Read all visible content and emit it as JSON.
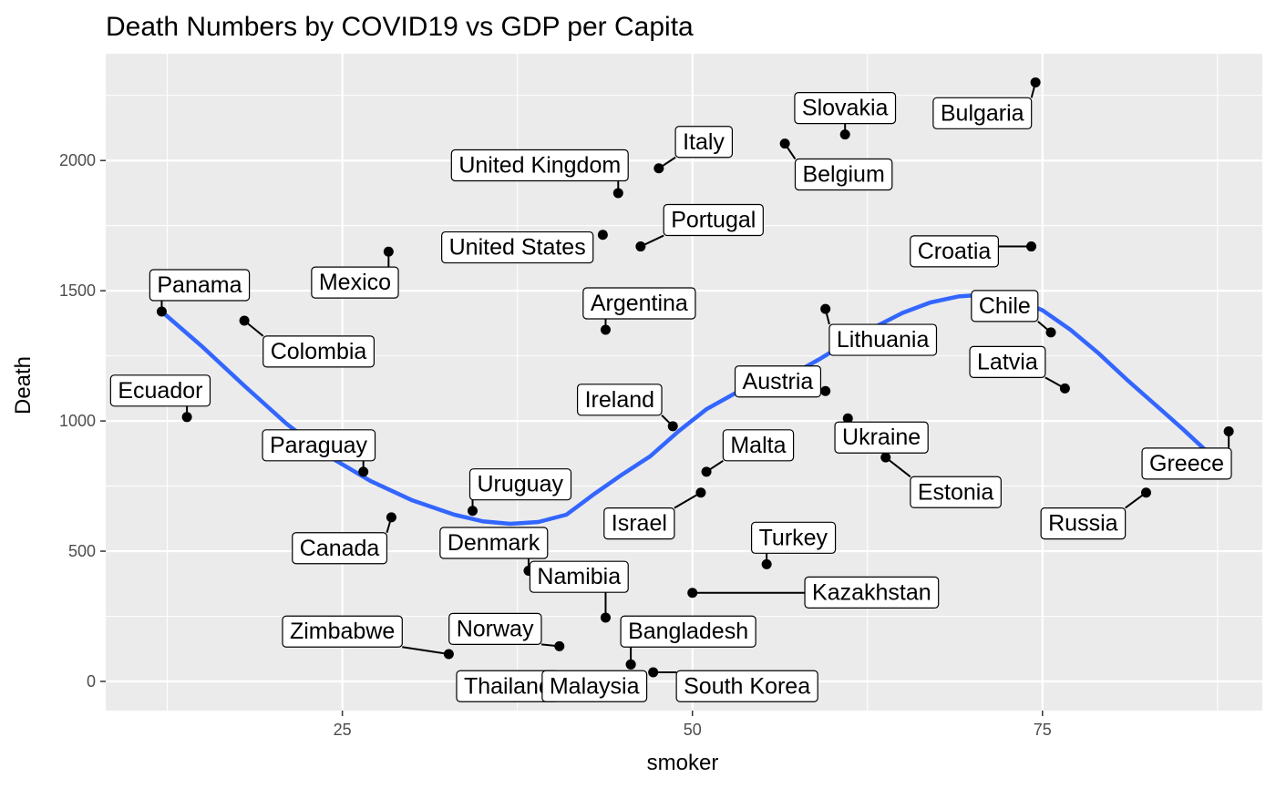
{
  "chart_data": {
    "type": "scatter",
    "title": "Death Numbers by COVID19 vs GDP per Capita",
    "xlabel": "smoker",
    "ylabel": "Death",
    "xlim": [
      8.1,
      90.7
    ],
    "ylim": [
      -112,
      2410
    ],
    "x_ticks": [
      25,
      50,
      75
    ],
    "x_tick_labels": [
      "25",
      "50",
      "75"
    ],
    "y_ticks": [
      0,
      500,
      1000,
      1500,
      2000
    ],
    "y_tick_labels": [
      "0",
      "500",
      "1000",
      "1500",
      "2000"
    ],
    "grid": true,
    "panel_background": "#ebebeb",
    "point_color": "#000000",
    "smooth_color": "#3366ff",
    "points": [
      {
        "label": "Panama",
        "x": 12.1,
        "y": 1420,
        "lx": 14.8,
        "ly": 1525
      },
      {
        "label": "Ecuador",
        "x": 13.9,
        "y": 1015,
        "lx": 12.0,
        "ly": 1120
      },
      {
        "label": "Colombia",
        "x": 18.0,
        "y": 1385,
        "lx": 23.3,
        "ly": 1270
      },
      {
        "label": "Mexico",
        "x": 28.3,
        "y": 1650,
        "lx": 25.9,
        "ly": 1535
      },
      {
        "label": "Paraguay",
        "x": 26.5,
        "y": 805,
        "lx": 23.3,
        "ly": 910
      },
      {
        "label": "Canada",
        "x": 28.5,
        "y": 630,
        "lx": 24.8,
        "ly": 515
      },
      {
        "label": "Uruguay",
        "x": 34.3,
        "y": 655,
        "lx": 37.7,
        "ly": 760
      },
      {
        "label": "Denmark",
        "x": 38.3,
        "y": 425,
        "lx": 35.8,
        "ly": 535
      },
      {
        "label": "Zimbabwe",
        "x": 32.6,
        "y": 105,
        "lx": 25.0,
        "ly": 195
      },
      {
        "label": "Norway",
        "x": 40.5,
        "y": 135,
        "lx": 35.9,
        "ly": 205
      },
      {
        "label": "Thailand",
        "x": 40.0,
        "y": -15,
        "lx": 36.8,
        "ly": -15
      },
      {
        "label": "Namibia",
        "x": 43.8,
        "y": 245,
        "lx": 41.9,
        "ly": 405
      },
      {
        "label": "Malaysia",
        "x": 45.6,
        "y": 65,
        "lx": 43.0,
        "ly": -15
      },
      {
        "label": "Bangladesh",
        "x": 45.6,
        "y": 65,
        "lx": 49.7,
        "ly": 195
      },
      {
        "label": "South Korea",
        "x": 47.2,
        "y": 35,
        "lx": 53.9,
        "ly": -15
      },
      {
        "label": "Kazakhstan",
        "x": 50.0,
        "y": 340,
        "lx": 62.8,
        "ly": 345
      },
      {
        "label": "Turkey",
        "x": 55.3,
        "y": 450,
        "lx": 57.2,
        "ly": 555
      },
      {
        "label": "Israel",
        "x": 50.6,
        "y": 725,
        "lx": 46.2,
        "ly": 610
      },
      {
        "label": "Malta",
        "x": 51.0,
        "y": 805,
        "lx": 54.7,
        "ly": 910
      },
      {
        "label": "Ireland",
        "x": 48.6,
        "y": 980,
        "lx": 44.8,
        "ly": 1085
      },
      {
        "label": "Argentina",
        "x": 43.8,
        "y": 1350,
        "lx": 46.2,
        "ly": 1455
      },
      {
        "label": "United States",
        "x": 43.6,
        "y": 1715,
        "lx": 37.5,
        "ly": 1670
      },
      {
        "label": "Portugal",
        "x": 46.3,
        "y": 1670,
        "lx": 51.5,
        "ly": 1775
      },
      {
        "label": "United Kingdom",
        "x": 44.7,
        "y": 1875,
        "lx": 39.1,
        "ly": 1985
      },
      {
        "label": "Italy",
        "x": 47.6,
        "y": 1970,
        "lx": 50.8,
        "ly": 2075
      },
      {
        "label": "Belgium",
        "x": 56.6,
        "y": 2065,
        "lx": 60.8,
        "ly": 1950
      },
      {
        "label": "Slovakia",
        "x": 60.9,
        "y": 2100,
        "lx": 60.9,
        "ly": 2205
      },
      {
        "label": "Bulgaria",
        "x": 74.5,
        "y": 2300,
        "lx": 70.7,
        "ly": 2185
      },
      {
        "label": "Croatia",
        "x": 74.2,
        "y": 1670,
        "lx": 68.7,
        "ly": 1655
      },
      {
        "label": "Lithuania",
        "x": 59.5,
        "y": 1430,
        "lx": 63.6,
        "ly": 1315
      },
      {
        "label": "Austria",
        "x": 59.5,
        "y": 1115,
        "lx": 56.1,
        "ly": 1155
      },
      {
        "label": "Ukraine",
        "x": 61.1,
        "y": 1010,
        "lx": 63.5,
        "ly": 940
      },
      {
        "label": "Estonia",
        "x": 63.8,
        "y": 860,
        "lx": 68.8,
        "ly": 730
      },
      {
        "label": "Chile",
        "x": 75.6,
        "y": 1340,
        "lx": 72.3,
        "ly": 1445
      },
      {
        "label": "Latvia",
        "x": 76.6,
        "y": 1125,
        "lx": 72.5,
        "ly": 1230
      },
      {
        "label": "Greece",
        "x": 88.3,
        "y": 960,
        "lx": 85.3,
        "ly": 840
      },
      {
        "label": "Russia",
        "x": 82.4,
        "y": 725,
        "lx": 77.9,
        "ly": 610
      }
    ],
    "smooth": {
      "x": [
        12.1,
        15,
        18,
        21,
        24,
        27,
        30,
        33,
        35,
        37,
        39,
        41,
        43,
        45,
        47,
        49,
        51,
        53,
        55,
        57,
        59,
        61,
        63,
        65,
        67,
        69,
        71,
        73,
        75,
        77,
        79,
        81,
        83,
        85,
        87,
        88.3
      ],
      "y": [
        1420,
        1285,
        1135,
        990,
        865,
        770,
        695,
        640,
        615,
        605,
        612,
        640,
        720,
        795,
        865,
        960,
        1045,
        1105,
        1145,
        1175,
        1235,
        1300,
        1360,
        1415,
        1455,
        1478,
        1485,
        1470,
        1425,
        1350,
        1260,
        1160,
        1065,
        970,
        870,
        815
      ]
    }
  }
}
